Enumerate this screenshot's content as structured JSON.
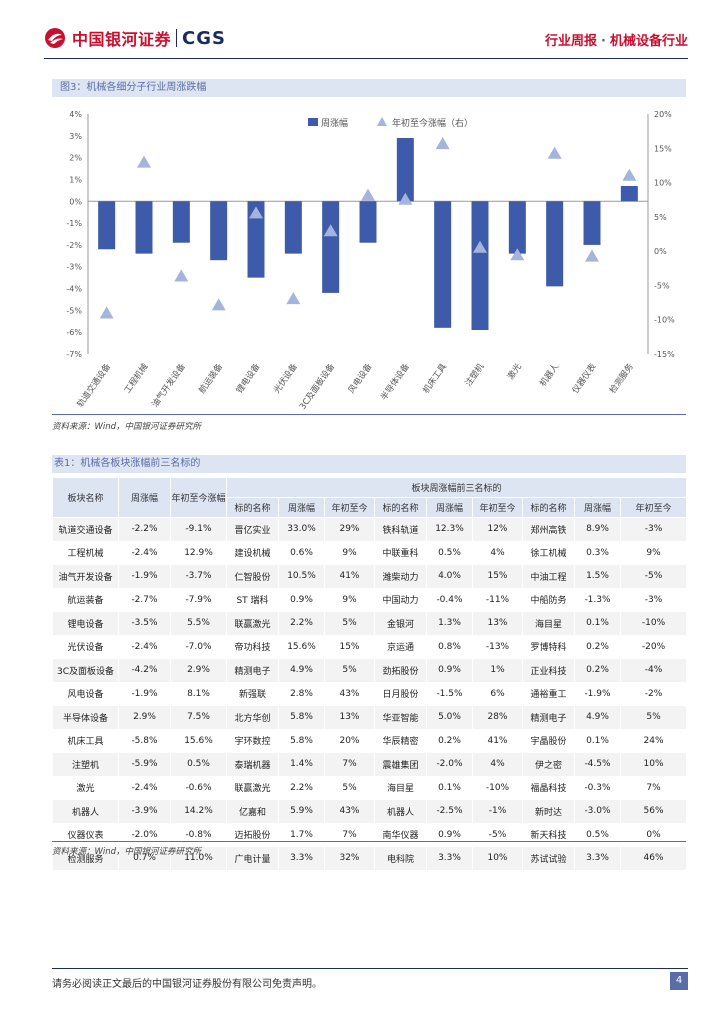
{
  "header": {
    "logo_text": "中国银河证券",
    "logo_cgs": "CGS",
    "report_type": "行业周报",
    "separator": "·",
    "industry": "机械设备行业"
  },
  "figure": {
    "title": "图3：机械各细分子行业周涨跌幅",
    "source": "资料来源：Wind，中国银河证券研究所"
  },
  "chart_data": {
    "type": "bar",
    "categories": [
      "轨道交通设备",
      "工程机械",
      "油气开发设备",
      "航运装备",
      "锂电设备",
      "光伏设备",
      "3C及面板设备",
      "风电设备",
      "半导体设备",
      "机床工具",
      "注塑机",
      "激光",
      "机器人",
      "仪器仪表",
      "检测服务"
    ],
    "series": [
      {
        "name": "周涨幅",
        "axis": "left",
        "type": "bar",
        "color": "#3d5ba8",
        "values": [
          -2.2,
          -2.4,
          -1.9,
          -2.7,
          -3.5,
          -2.4,
          -4.2,
          -1.9,
          2.9,
          -5.8,
          -5.9,
          -2.4,
          -3.9,
          -2.0,
          0.7
        ]
      },
      {
        "name": "年初至今涨幅（右）",
        "axis": "right",
        "type": "scatter",
        "marker": "triangle",
        "color": "#a4b4dc",
        "values": [
          -9.1,
          12.9,
          -3.7,
          -7.9,
          5.5,
          -7.0,
          2.9,
          8.1,
          7.5,
          15.6,
          0.5,
          -0.6,
          14.2,
          -0.8,
          11.0
        ]
      }
    ],
    "ylim_left": [
      -7,
      4
    ],
    "yticks_left": [
      "4%",
      "3%",
      "2%",
      "1%",
      "0%",
      "-1%",
      "-2%",
      "-3%",
      "-4%",
      "-5%",
      "-6%",
      "-7%"
    ],
    "ylim_right": [
      -15,
      20
    ],
    "yticks_right": [
      "20%",
      "15%",
      "10%",
      "5%",
      "0%",
      "-5%",
      "-10%",
      "-15%"
    ],
    "legend": "top-center"
  },
  "table": {
    "title": "表1：机械各板块涨幅前三名标的",
    "header_top": [
      "板块名称",
      "周涨幅",
      "年初至今涨幅",
      "板块周涨幅前三名标的"
    ],
    "header_sub": [
      "标的名称",
      "周涨幅",
      "年初至今",
      "标的名称",
      "周涨幅",
      "年初至今",
      "标的名称",
      "周涨幅",
      "年初至今"
    ],
    "rows": [
      [
        "轨道交通设备",
        "-2.2%",
        "-9.1%",
        "晋亿实业",
        "33.0%",
        "29%",
        "铁科轨道",
        "12.3%",
        "12%",
        "郑州高铁",
        "8.9%",
        "-3%"
      ],
      [
        "工程机械",
        "-2.4%",
        "12.9%",
        "建设机械",
        "0.6%",
        "9%",
        "中联重科",
        "0.5%",
        "4%",
        "徐工机械",
        "0.3%",
        "9%"
      ],
      [
        "油气开发设备",
        "-1.9%",
        "-3.7%",
        "仁智股份",
        "10.5%",
        "41%",
        "潍柴动力",
        "4.0%",
        "15%",
        "中油工程",
        "1.5%",
        "-5%"
      ],
      [
        "航运装备",
        "-2.7%",
        "-7.9%",
        "ST 瑞科",
        "0.9%",
        "9%",
        "中国动力",
        "-0.4%",
        "-11%",
        "中船防务",
        "-1.3%",
        "-3%"
      ],
      [
        "锂电设备",
        "-3.5%",
        "5.5%",
        "联赢激光",
        "2.2%",
        "5%",
        "金银河",
        "1.3%",
        "13%",
        "海目星",
        "0.1%",
        "-10%"
      ],
      [
        "光伏设备",
        "-2.4%",
        "-7.0%",
        "帝功科技",
        "15.6%",
        "15%",
        "京运通",
        "0.8%",
        "-13%",
        "罗博特科",
        "0.2%",
        "-20%"
      ],
      [
        "3C及面板设备",
        "-4.2%",
        "2.9%",
        "精测电子",
        "4.9%",
        "5%",
        "劲拓股份",
        "0.9%",
        "1%",
        "正业科技",
        "0.2%",
        "-4%"
      ],
      [
        "风电设备",
        "-1.9%",
        "8.1%",
        "新强联",
        "2.8%",
        "43%",
        "日月股份",
        "-1.5%",
        "6%",
        "通裕重工",
        "-1.9%",
        "-2%"
      ],
      [
        "半导体设备",
        "2.9%",
        "7.5%",
        "北方华创",
        "5.8%",
        "13%",
        "华亚智能",
        "5.0%",
        "28%",
        "精测电子",
        "4.9%",
        "5%"
      ],
      [
        "机床工具",
        "-5.8%",
        "15.6%",
        "宇环数控",
        "5.8%",
        "20%",
        "华辰精密",
        "0.2%",
        "41%",
        "宇晶股份",
        "0.1%",
        "24%"
      ],
      [
        "注塑机",
        "-5.9%",
        "0.5%",
        "泰瑞机器",
        "1.4%",
        "7%",
        "震雄集团",
        "-2.0%",
        "4%",
        "伊之密",
        "-4.5%",
        "10%"
      ],
      [
        "激光",
        "-2.4%",
        "-0.6%",
        "联赢激光",
        "2.2%",
        "5%",
        "海目星",
        "0.1%",
        "-10%",
        "福晶科技",
        "-0.3%",
        "7%"
      ],
      [
        "机器人",
        "-3.9%",
        "14.2%",
        "亿嘉和",
        "5.9%",
        "43%",
        "机器人",
        "-2.5%",
        "-1%",
        "新时达",
        "-3.0%",
        "56%"
      ],
      [
        "仪器仪表",
        "-2.0%",
        "-0.8%",
        "迈拓股份",
        "1.7%",
        "7%",
        "南华仪器",
        "0.9%",
        "-5%",
        "新天科技",
        "0.5%",
        "0%"
      ],
      [
        "检测服务",
        "0.7%",
        "11.0%",
        "广电计量",
        "3.3%",
        "32%",
        "电科院",
        "3.3%",
        "10%",
        "苏试试验",
        "3.3%",
        "46%"
      ]
    ],
    "source": "资料来源：Wind，中国银河证券研究所"
  },
  "footer": {
    "disclaimer": "请务必阅读正文最后的中国银河证券股份有限公司免责声明。",
    "page": "4"
  }
}
